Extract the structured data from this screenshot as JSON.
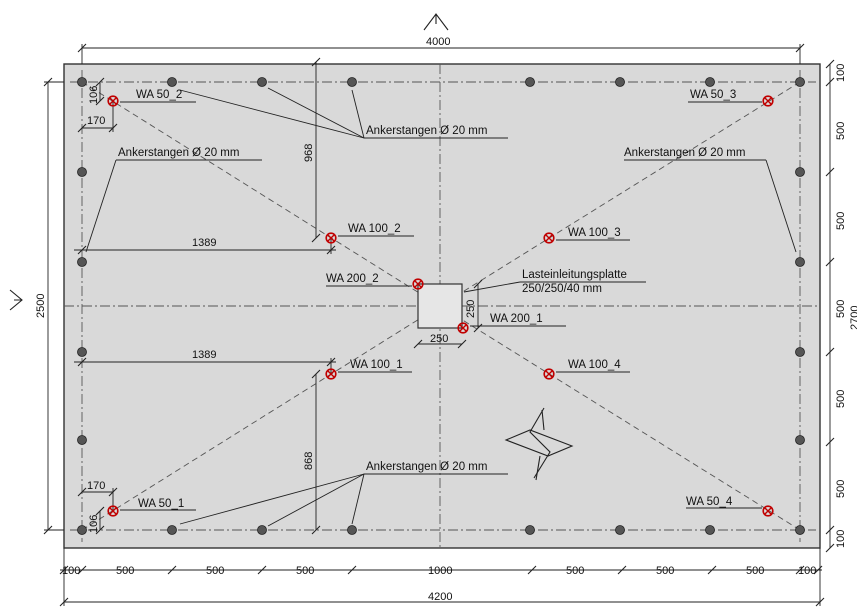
{
  "dimensions": {
    "top_overall": "4000",
    "bottom_overall": "4200",
    "left_overall": "2500",
    "right_overall_partial": "2700",
    "bottom_segments": [
      "100",
      "500",
      "500",
      "500",
      "1000",
      "500",
      "500",
      "500",
      "100"
    ],
    "right_segments": [
      "100",
      "500",
      "500",
      "500",
      "500",
      "500",
      "100"
    ],
    "offset_top_left_vertical": "106",
    "offset_top_left_horizontal": "170",
    "offset_bottom_left_vertical": "106",
    "offset_bottom_left_horizontal": "170",
    "vertical_top_wa100": "968",
    "vertical_bottom_wa100": "868",
    "horizontal_upper_1389": "1389",
    "horizontal_lower_1389": "1389",
    "plate_width": "250",
    "plate_height": "250"
  },
  "labels": {
    "anchor_top_center": "Ankerstangen Ø 20 mm",
    "anchor_left": "Ankerstangen Ø 20 mm",
    "anchor_right": "Ankerstangen Ø 20 mm",
    "anchor_bottom_center": "Ankerstangen Ø 20 mm",
    "load_plate_title": "Lasteinleitungsplatte",
    "load_plate_size": "250/250/40 mm"
  },
  "sensors": [
    {
      "id": "wa50_2",
      "label": "WA 50_2"
    },
    {
      "id": "wa50_3",
      "label": "WA 50_3"
    },
    {
      "id": "wa100_2",
      "label": "WA 100_2"
    },
    {
      "id": "wa100_3",
      "label": "WA 100_3"
    },
    {
      "id": "wa200_2",
      "label": "WA 200_2"
    },
    {
      "id": "wa200_1",
      "label": "WA 200_1"
    },
    {
      "id": "wa100_1",
      "label": "WA 100_1"
    },
    {
      "id": "wa100_4",
      "label": "WA 100_4"
    },
    {
      "id": "wa50_1",
      "label": "WA 50_1"
    },
    {
      "id": "wa50_4",
      "label": "WA 50_4"
    }
  ]
}
